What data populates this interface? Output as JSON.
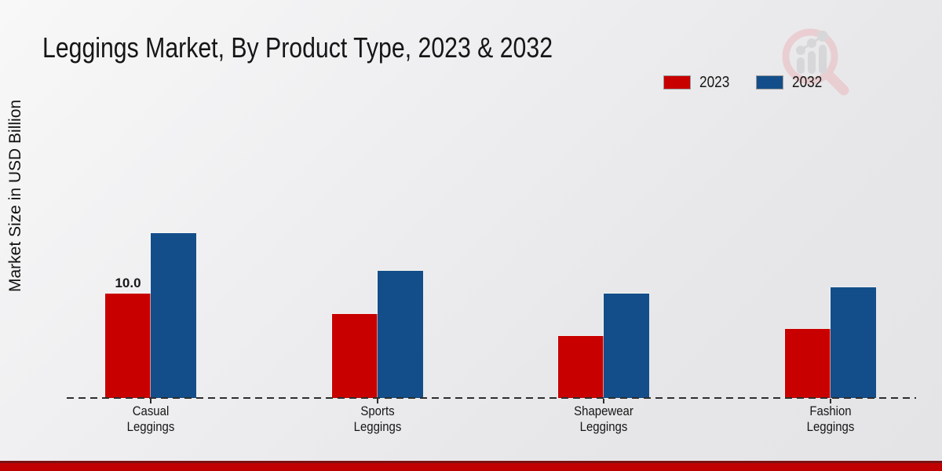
{
  "title": "Leggings Market, By Product Type, 2023 & 2032",
  "y_axis_label": "Market Size in USD Billion",
  "legend": [
    {
      "label": "2023",
      "color": "#c80000"
    },
    {
      "label": "2032",
      "color": "#134e8a"
    }
  ],
  "watermark_icon": "magnifier-bar-chart-logo",
  "colors": {
    "series_2023": "#c80000",
    "series_2032": "#134e8a",
    "bottom_stripe": "#c00000",
    "bottom_stripe_dark": "#7a1214",
    "baseline_dash": "#2e2e2e",
    "background": "#ececee",
    "text": "#161616"
  },
  "chart_data": {
    "type": "bar",
    "title": "Leggings Market, By Product Type, 2023 & 2032",
    "categories": [
      "Casual\nLeggings",
      "Sports\nLeggings",
      "Shapewear\nLeggings",
      "Fashion\nLeggings"
    ],
    "series": [
      {
        "name": "2023",
        "color": "#c80000",
        "values": [
          10.0,
          8.0,
          5.9,
          6.6
        ],
        "labels": [
          "10.0",
          "",
          "",
          ""
        ]
      },
      {
        "name": "2032",
        "color": "#134e8a",
        "values": [
          15.7,
          12.1,
          10.0,
          10.6
        ],
        "labels": [
          "",
          "",
          "",
          ""
        ]
      }
    ],
    "xlabel": "",
    "ylabel": "Market Size in USD Billion",
    "ylim": [
      0,
      16
    ],
    "grid": false,
    "y_ticks_visible": false,
    "baseline_style": "dashed",
    "legend_position": "top-right"
  }
}
